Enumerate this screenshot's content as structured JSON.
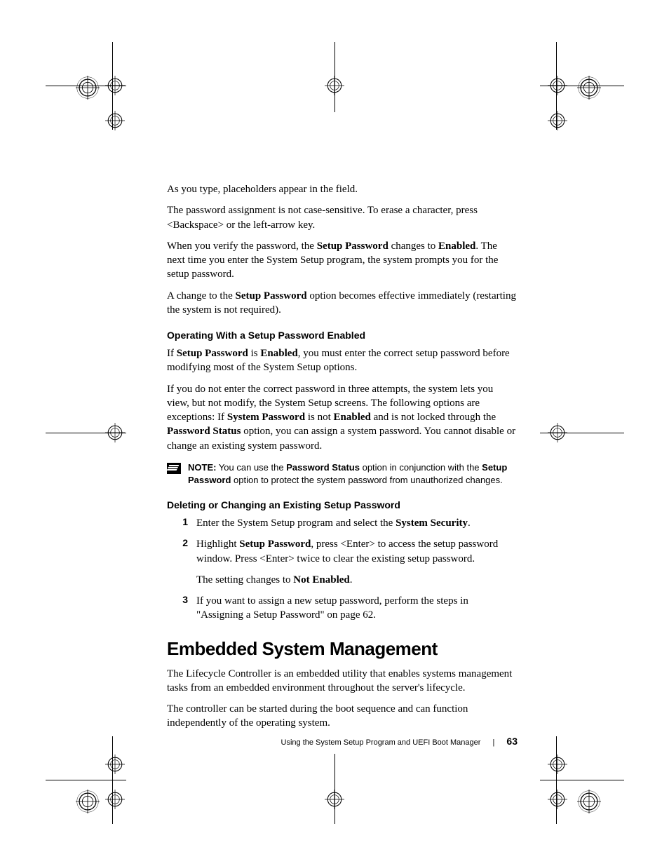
{
  "body": {
    "p1": "As you type, placeholders appear in the field.",
    "p2": "The password assignment is not case-sensitive. To erase a character, press <Backspace> or the left-arrow key.",
    "p3a": "When you verify the password, the ",
    "p3b": "Setup Password",
    "p3c": " changes to ",
    "p3d": "Enabled",
    "p3e": ". The next time you enter the System Setup program, the system prompts you for the setup password.",
    "p4a": "A change to the ",
    "p4b": "Setup Password",
    "p4c": " option becomes effective immediately (restarting the system is not required).",
    "sh1": "Operating With a Setup Password Enabled",
    "p5a": "If ",
    "p5b": "Setup Password",
    "p5c": " is ",
    "p5d": "Enabled",
    "p5e": ", you must enter the correct setup password before modifying most of the System Setup options.",
    "p6a": "If you do not enter the correct password in three attempts, the system lets you view, but not modify, the System Setup screens. The following options are exceptions: If ",
    "p6b": "System Password",
    "p6c": " is not ",
    "p6d": "Enabled",
    "p6e": " and is not locked through the ",
    "p6f": "Password Status",
    "p6g": " option, you can assign a system password. You cannot disable or change an existing system password.",
    "note_label": "NOTE:",
    "note_a": " You can use the ",
    "note_b": "Password Status",
    "note_c": " option in conjunction with the ",
    "note_d": "Setup Password",
    "note_e": " option to protect the system password from unauthorized changes.",
    "sh2": "Deleting or Changing an Existing Setup Password",
    "n1": "1",
    "li1a": "Enter the System Setup program and select the ",
    "li1b": "System Security",
    "li1c": ".",
    "n2": "2",
    "li2a": "Highlight ",
    "li2b": "Setup Password",
    "li2c": ", press <Enter> to access the setup password window. Press <Enter> twice to clear the existing setup password.",
    "li2d_a": "The setting changes to ",
    "li2d_b": "Not Enabled",
    "li2d_c": ".",
    "n3": "3",
    "li3": "If you want to assign a new setup password, perform the steps in \"Assigning a Setup Password\" on page 62.",
    "h1": "Embedded System Management",
    "p7": "The Lifecycle Controller is an embedded utility that enables systems management tasks from an embedded environment throughout the server's lifecycle.",
    "p8": "The controller can be started during the boot sequence and can function independently of the operating system."
  },
  "footer": {
    "title": "Using the System Setup Program and UEFI Boot Manager",
    "page": "63"
  }
}
